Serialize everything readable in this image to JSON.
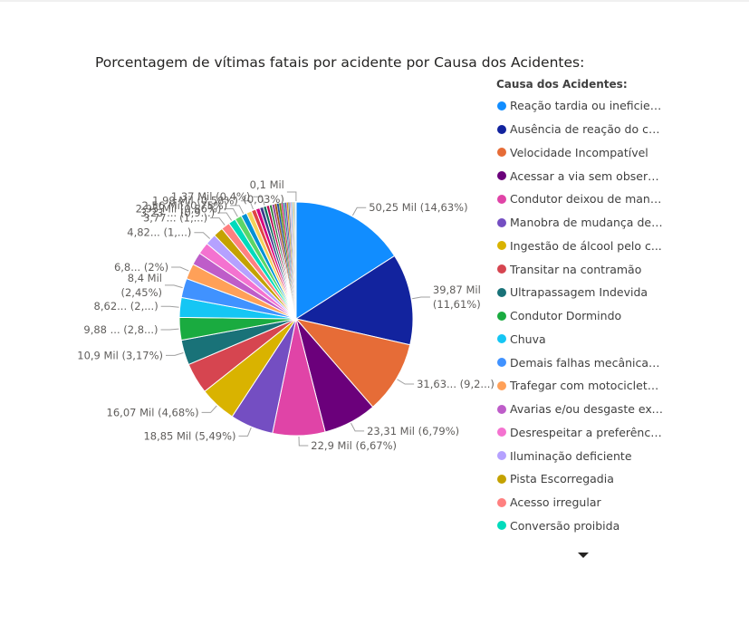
{
  "chart_data": {
    "type": "pie",
    "title": "Porcentagem de vítimas fatais por acidente por Causa dos Acidentes:",
    "legend_title": "Causa dos Acidentes:",
    "legend_position": "right",
    "slices": [
      {
        "name": "Reação tardia ou ineficien...",
        "value": 50.25,
        "percent": 14.63,
        "color": "#118DFF",
        "label": [
          "50,25 Mil (14,63%)"
        ]
      },
      {
        "name": "Ausência de reação do co...",
        "value": 39.87,
        "percent": 11.61,
        "color": "#12239E",
        "label": [
          "39,87 Mil",
          "(11,61%)"
        ]
      },
      {
        "name": "Velocidade Incompatível",
        "value": 31.63,
        "percent": 9.2,
        "color": "#E66C37",
        "label": [
          "31,63... (9,2...)"
        ]
      },
      {
        "name": "Acessar a via sem observa...",
        "value": 23.31,
        "percent": 6.79,
        "color": "#6B007B",
        "label": [
          "23,31 Mil (6,79%)"
        ]
      },
      {
        "name": "Condutor deixou de mant...",
        "value": 22.9,
        "percent": 6.67,
        "color": "#E044A7",
        "label": [
          "22,9 Mil (6,67%)"
        ]
      },
      {
        "name": "Manobra de mudança de ...",
        "value": 18.85,
        "percent": 5.49,
        "color": "#744EC2",
        "label": [
          "18,85 Mil (5,49%)"
        ]
      },
      {
        "name": "Ingestão de álcool pelo c...",
        "value": 16.07,
        "percent": 4.68,
        "color": "#D9B300",
        "label": [
          "16,07 Mil (4,68%)"
        ]
      },
      {
        "name": "Transitar na contramão",
        "value": 13.5,
        "percent": 3.93,
        "color": "#D64550",
        "label": []
      },
      {
        "name": "Ultrapassagem Indevida",
        "value": 10.9,
        "percent": 3.17,
        "color": "#197278",
        "label": [
          "10,9 Mil (3,17%)"
        ]
      },
      {
        "name": "Condutor Dormindo",
        "value": 9.88,
        "percent": 2.88,
        "color": "#1AAB40",
        "label": [
          "9,88 ... (2,8...)"
        ]
      },
      {
        "name": "Chuva",
        "value": 8.62,
        "percent": 2.51,
        "color": "#15C6F4",
        "label": [
          "8,62... (2,...)"
        ]
      },
      {
        "name": "Demais falhas mecânicas ...",
        "value": 8.4,
        "percent": 2.45,
        "color": "#4092FF",
        "label": [
          "8,4 Mil",
          "(2,45%)"
        ]
      },
      {
        "name": "Trafegar com motocicleta ...",
        "value": 6.8,
        "percent": 2.0,
        "color": "#FFA058",
        "label": [
          "6,8... (2%)"
        ]
      },
      {
        "name": "Avarias e/ou desgaste exc...",
        "value": 5.5,
        "percent": 1.6,
        "color": "#BE5DC9",
        "label": []
      },
      {
        "name": "Desrespeitar a preferência...",
        "value": 5.2,
        "percent": 1.51,
        "color": "#F472D0",
        "label": []
      },
      {
        "name": "Iluminação deficiente",
        "value": 4.82,
        "percent": 1.4,
        "color": "#B5A1FF",
        "label": [
          "4,82... (1,...)"
        ]
      },
      {
        "name": "Pista Escorregadia",
        "value": 4.3,
        "percent": 1.25,
        "color": "#C4A200",
        "label": []
      },
      {
        "name": "Acesso irregular",
        "value": 3.77,
        "percent": 1.1,
        "color": "#FF8080",
        "label": [
          "3,77... (1,...)"
        ]
      },
      {
        "name": "Conversão proibida",
        "value": 3.23,
        "percent": 0.94,
        "color": "#00DBBC",
        "label": [
          "3,23 ... (0,9...)"
        ]
      },
      {
        "name": "",
        "value": 2.95,
        "percent": 0.86,
        "color": "#5BD667",
        "label": [
          "2,95 Mil (0,86%)"
        ]
      },
      {
        "name": "",
        "value": 2.56,
        "percent": 0.75,
        "color": "#0091D5",
        "label": [
          "2,56 Mil (0,75%)"
        ]
      },
      {
        "name": "",
        "value": 2.3,
        "percent": 0.67,
        "color": "#F4D25A",
        "label": []
      },
      {
        "name": "",
        "value": 1.99,
        "percent": 0.58,
        "color": "#E04444",
        "label": [
          "1,99 Mil (0,58%)"
        ]
      },
      {
        "name": "",
        "value": 1.8,
        "percent": 0.52,
        "color": "#D6007D",
        "label": []
      },
      {
        "name": "",
        "value": 1.6,
        "percent": 0.47,
        "color": "#3B3C8C",
        "label": []
      },
      {
        "name": "",
        "value": 1.37,
        "percent": 0.4,
        "color": "#0F6E5C",
        "label": [
          "1,37 Mil (0,4%)"
        ]
      },
      {
        "name": "",
        "value": 1.3,
        "percent": 0.38,
        "color": "#B8004F",
        "label": []
      },
      {
        "name": "",
        "value": 1.2,
        "percent": 0.35,
        "color": "#2A7F3B",
        "label": []
      },
      {
        "name": "",
        "value": 1.1,
        "percent": 0.32,
        "color": "#8E2E8E",
        "label": []
      },
      {
        "name": "",
        "value": 1.0,
        "percent": 0.29,
        "color": "#A35414",
        "label": []
      },
      {
        "name": "",
        "value": 0.95,
        "percent": 0.28,
        "color": "#1E4F9E",
        "label": []
      },
      {
        "name": "",
        "value": 0.9,
        "percent": 0.26,
        "color": "#5E8A00",
        "label": []
      },
      {
        "name": "",
        "value": 0.85,
        "percent": 0.25,
        "color": "#C7367A",
        "label": []
      },
      {
        "name": "",
        "value": 0.8,
        "percent": 0.23,
        "color": "#2C9BA0",
        "label": []
      },
      {
        "name": "",
        "value": 0.75,
        "percent": 0.22,
        "color": "#6C3FA6",
        "label": []
      },
      {
        "name": "",
        "value": 0.7,
        "percent": 0.2,
        "color": "#D4A017",
        "label": []
      },
      {
        "name": "",
        "value": 0.6,
        "percent": 0.17,
        "color": "#4B6E8C",
        "label": []
      },
      {
        "name": "",
        "value": 0.55,
        "percent": 0.16,
        "color": "#E3A1BD",
        "label": []
      },
      {
        "name": "",
        "value": 0.5,
        "percent": 0.15,
        "color": "#7FB2E5",
        "label": []
      },
      {
        "name": "",
        "value": 0.45,
        "percent": 0.13,
        "color": "#9C9C9C",
        "label": []
      },
      {
        "name": "",
        "value": 0.4,
        "percent": 0.12,
        "color": "#F0C93A",
        "label": []
      },
      {
        "name": "",
        "value": 0.35,
        "percent": 0.1,
        "color": "#3C8DBC",
        "label": []
      },
      {
        "name": "",
        "value": 0.3,
        "percent": 0.09,
        "color": "#A8D8EA",
        "label": []
      },
      {
        "name": "",
        "value": 0.2,
        "percent": 0.06,
        "color": "#CFC5A5",
        "label": []
      },
      {
        "name": "",
        "value": 0.1,
        "percent": 0.03,
        "color": "#D0D7E0",
        "label": [
          "0,1 Mil",
          "(0,03%)"
        ]
      }
    ]
  },
  "legend": {
    "title": "Causa dos Acidentes:",
    "items": [
      {
        "label": "Reação tardia ou ineficien...",
        "color": "#118DFF"
      },
      {
        "label": "Ausência de reação do co...",
        "color": "#12239E"
      },
      {
        "label": "Velocidade Incompatível",
        "color": "#E66C37"
      },
      {
        "label": "Acessar a via sem observa...",
        "color": "#6B007B"
      },
      {
        "label": "Condutor deixou de mant...",
        "color": "#E044A7"
      },
      {
        "label": "Manobra de mudança de ...",
        "color": "#744EC2"
      },
      {
        "label": "Ingestão de álcool pelo c...",
        "color": "#D9B300"
      },
      {
        "label": "Transitar na contramão",
        "color": "#D64550"
      },
      {
        "label": "Ultrapassagem Indevida",
        "color": "#197278"
      },
      {
        "label": "Condutor Dormindo",
        "color": "#1AAB40"
      },
      {
        "label": "Chuva",
        "color": "#15C6F4"
      },
      {
        "label": "Demais falhas mecânicas ...",
        "color": "#4092FF"
      },
      {
        "label": "Trafegar com motocicleta ...",
        "color": "#FFA058"
      },
      {
        "label": "Avarias e/ou desgaste exc...",
        "color": "#BE5DC9"
      },
      {
        "label": "Desrespeitar a preferência...",
        "color": "#F472D0"
      },
      {
        "label": "Iluminação deficiente",
        "color": "#B5A1FF"
      },
      {
        "label": "Pista Escorregadia",
        "color": "#C4A200"
      },
      {
        "label": "Acesso irregular",
        "color": "#FF8080"
      },
      {
        "label": "Conversão proibida",
        "color": "#00DBBC"
      }
    ],
    "scroll_icon": "triangle-down-icon"
  }
}
